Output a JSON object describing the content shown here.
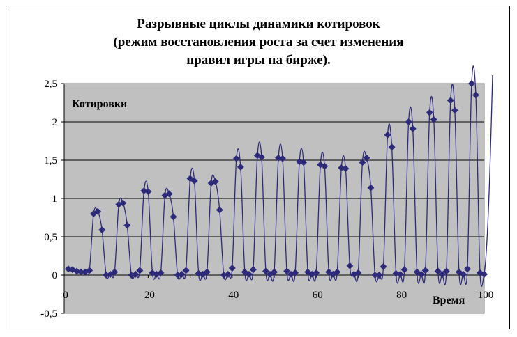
{
  "chart_data": {
    "type": "line",
    "title_lines": [
      "Разрывные циклы динамики котировок",
      "(режим восстановления роста за счет изменения",
      "правил игры на бирже)."
    ],
    "ylabel": "Котировки",
    "xlabel": "Время",
    "xlim": [
      0,
      100
    ],
    "ylim": [
      -0.5,
      2.5
    ],
    "x_ticks": [
      0,
      20,
      40,
      60,
      80,
      100
    ],
    "y_ticks": [
      -0.5,
      0,
      0.5,
      1,
      1.5,
      2,
      2.5
    ],
    "y_tick_labels": [
      "-0,5",
      "0",
      "0,5",
      "1",
      "1,5",
      "2",
      "2,5"
    ],
    "grid": true,
    "series": [
      {
        "color": "#2e2a7a",
        "marker": "diamond",
        "x": [
          1,
          2,
          3,
          4,
          5,
          6,
          7,
          8,
          9,
          10,
          11,
          12,
          13,
          14,
          15,
          16,
          17,
          18,
          19,
          20,
          21,
          22,
          23,
          24,
          25,
          26,
          27,
          28,
          29,
          30,
          31,
          32,
          33,
          34,
          35,
          36,
          37,
          38,
          39,
          40,
          41,
          42,
          43,
          44,
          45,
          46,
          47,
          48,
          49,
          50,
          51,
          52,
          53,
          54,
          55,
          56,
          57,
          58,
          59,
          60,
          61,
          62,
          63,
          64,
          65,
          66,
          67,
          68,
          69,
          70,
          71,
          72,
          73,
          74,
          75,
          76,
          77,
          78,
          79,
          80,
          81,
          82,
          83,
          84,
          85,
          86,
          87,
          88,
          89,
          90,
          91,
          92,
          93,
          94,
          95,
          96,
          97,
          98,
          99,
          100
        ],
        "y": [
          0.08,
          0.07,
          0.05,
          0.04,
          0.04,
          0.06,
          0.8,
          0.83,
          0.59,
          0.0,
          0.01,
          0.04,
          0.92,
          0.94,
          0.65,
          0.0,
          0.01,
          0.06,
          1.1,
          1.09,
          0.03,
          0.01,
          0.03,
          1.04,
          1.06,
          0.76,
          0.0,
          0.01,
          0.06,
          1.26,
          1.23,
          0.02,
          0.01,
          0.04,
          1.2,
          1.22,
          0.85,
          0.0,
          0.01,
          0.09,
          1.52,
          1.41,
          0.04,
          0.01,
          0.07,
          1.56,
          1.54,
          0.05,
          0.01,
          0.04,
          1.53,
          1.52,
          0.05,
          0.01,
          0.03,
          1.48,
          1.47,
          0.04,
          0.01,
          0.03,
          1.44,
          1.42,
          0.04,
          0.01,
          0.04,
          1.4,
          1.39,
          0.12,
          0.01,
          0.03,
          1.47,
          1.53,
          1.14,
          0.0,
          0.0,
          0.11,
          1.83,
          1.67,
          0.02,
          0.01,
          0.07,
          2.0,
          1.91,
          0.04,
          0.01,
          0.06,
          2.12,
          2.03,
          0.05,
          0.01,
          0.05,
          2.28,
          2.15,
          0.04,
          0.01,
          0.08,
          2.5,
          2.35,
          0.03,
          0.01
        ]
      }
    ]
  }
}
